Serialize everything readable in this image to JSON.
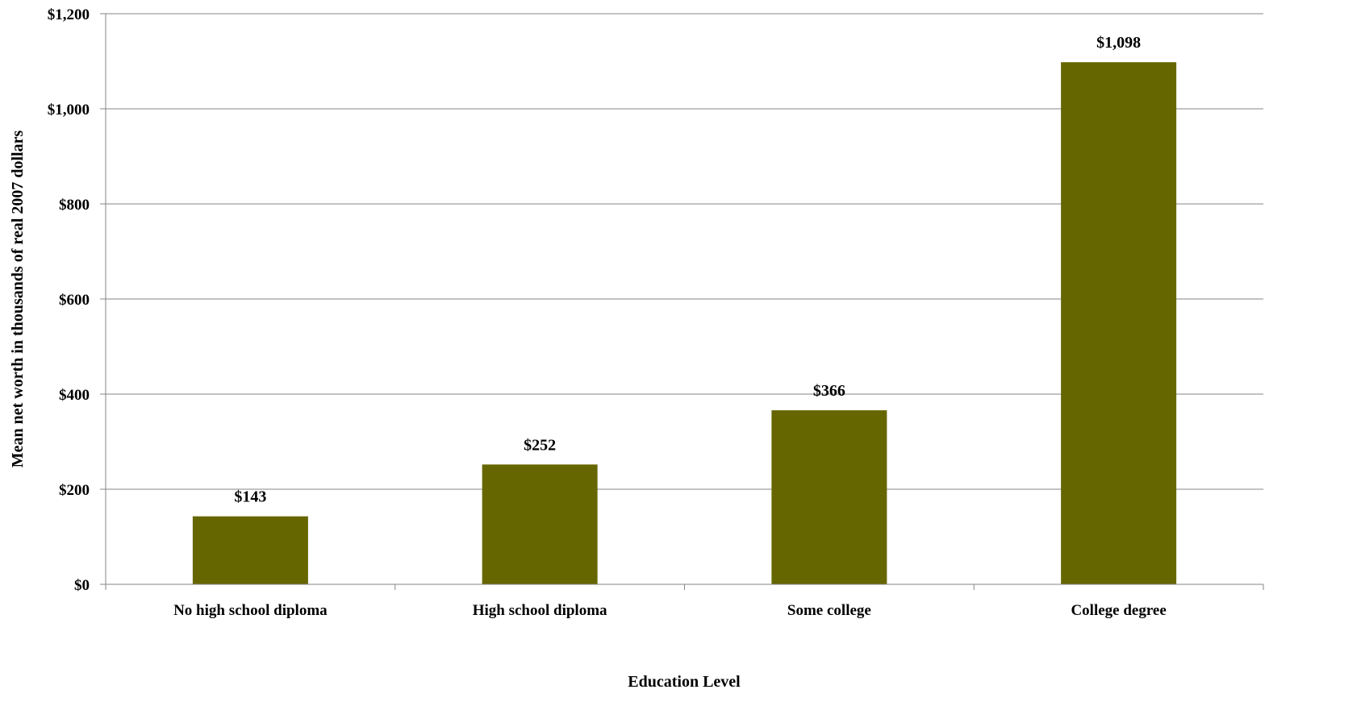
{
  "chart_data": {
    "type": "bar",
    "title": "",
    "xlabel": "Education Level",
    "ylabel": "Mean net worth in thousands of real 2007 dollars",
    "categories": [
      "No high school diploma",
      "High school diploma",
      "Some college",
      "College degree"
    ],
    "series": [
      {
        "values": [
          143,
          252,
          366,
          1098
        ],
        "data_labels": [
          "$143",
          "$252",
          "$366",
          "$1,098"
        ],
        "color": "#666600"
      }
    ],
    "ylim": [
      0,
      1200
    ],
    "yticks": [
      0,
      200,
      400,
      600,
      800,
      1000,
      1200
    ],
    "ytick_labels": [
      "$0",
      "$200",
      "$400",
      "$600",
      "$800",
      "$1,000",
      "$1,200"
    ],
    "grid": true,
    "legend": "none"
  },
  "colors": {
    "bar": "#666600",
    "gridline": "#868686",
    "axis": "#868686"
  }
}
